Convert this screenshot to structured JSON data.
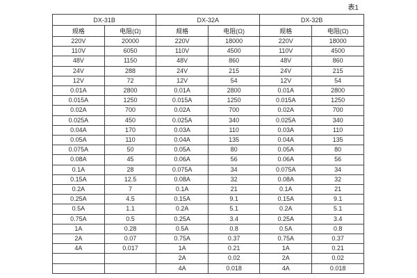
{
  "table": {
    "caption": "表1",
    "group_headers": [
      "DX-31B",
      "DX-32A",
      "DX-32B"
    ],
    "sub_headers": {
      "spec": "规格",
      "resistance": "电阻(Ω)"
    },
    "rows": [
      [
        "220V",
        "20000",
        "220V",
        "18000",
        "220V",
        "18000"
      ],
      [
        "110V",
        "6050",
        "110V",
        "4500",
        "110V",
        "4500"
      ],
      [
        "48V",
        "1150",
        "48V",
        "860",
        "48V",
        "860"
      ],
      [
        "24V",
        "288",
        "24V",
        "215",
        "24V",
        "215"
      ],
      [
        "12V",
        "72",
        "12V",
        "54",
        "12V",
        "54"
      ],
      [
        "0.01A",
        "2800",
        "0.01A",
        "2800",
        "0.01A",
        "2800"
      ],
      [
        "0.015A",
        "1250",
        "0.015A",
        "1250",
        "0.015A",
        "1250"
      ],
      [
        "0.02A",
        "700",
        "0.02A",
        "700",
        "0.02A",
        "700"
      ],
      [
        "0.025A",
        "450",
        "0.025A",
        "340",
        "0.025A",
        "340"
      ],
      [
        "0.04A",
        "170",
        "0.03A",
        "110",
        "0.03A",
        "110"
      ],
      [
        "0.05A",
        "110",
        "0.04A",
        "135",
        "0.04A",
        "135"
      ],
      [
        "0.075A",
        "50",
        "0.05A",
        "80",
        "0.05A",
        "80"
      ],
      [
        "0.08A",
        "45",
        "0.06A",
        "56",
        "0.06A",
        "56"
      ],
      [
        "0.1A",
        "28",
        "0.075A",
        "34",
        "0.075A",
        "34"
      ],
      [
        "0.15A",
        "12.5",
        "0.08A",
        "32",
        "0.08A",
        "32"
      ],
      [
        "0.2A",
        "7",
        "0.1A",
        "21",
        "0.1A",
        "21"
      ],
      [
        "0.25A",
        "4.5",
        "0.15A",
        "9.1",
        "0.15A",
        "9.1"
      ],
      [
        "0.5A",
        "1.1",
        "0.2A",
        "5.1",
        "0.2A",
        "5.1"
      ],
      [
        "0.75A",
        "0.5",
        "0.25A",
        "3.4",
        "0.25A",
        "3.4"
      ],
      [
        "1A",
        "0.28",
        "0.5A",
        "0.8",
        "0.5A",
        "0.8"
      ],
      [
        "2A",
        "0.07",
        "0.75A",
        "0.37",
        "0.75A",
        "0.37"
      ],
      [
        "4A",
        "0.017",
        "1A",
        "0.21",
        "1A",
        "0.21"
      ],
      [
        "",
        "",
        "2A",
        "0.02",
        "2A",
        "0.02"
      ],
      [
        "",
        "",
        "4A",
        "0.018",
        "4A",
        "0.018"
      ]
    ]
  },
  "colors": {
    "border": "#404040",
    "text": "#2b2b2b",
    "background": "#ffffff"
  }
}
